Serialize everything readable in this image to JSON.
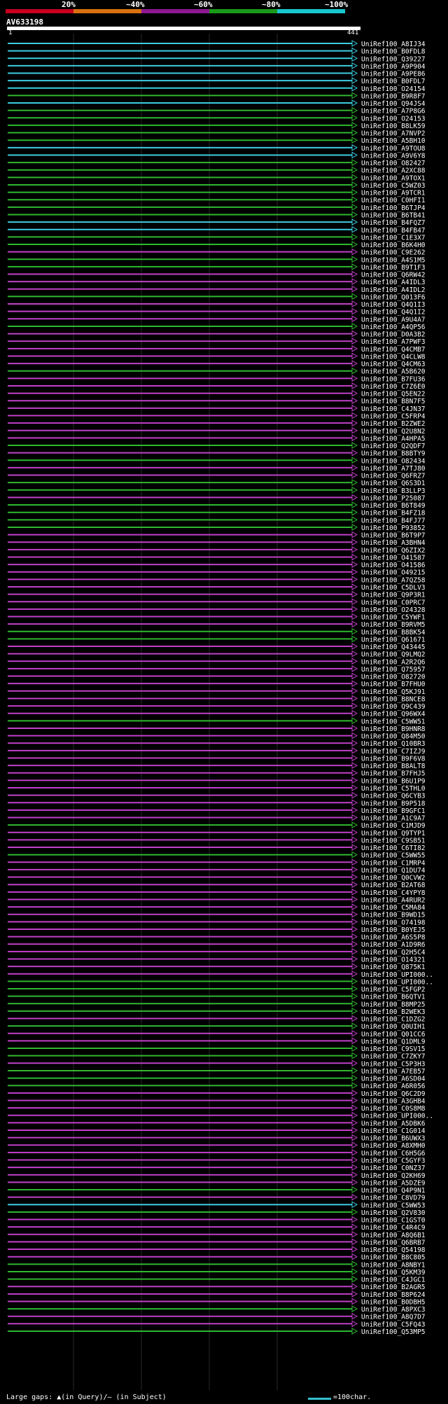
{
  "header": {
    "percent_labels": [
      "20%",
      "~40%",
      "~60%",
      "~80%",
      "~100%"
    ],
    "band_colors": [
      "#c8001e",
      "#d87010",
      "#8c1890",
      "#1a9a1a",
      "#18c8d0"
    ],
    "query_id": "AV633198",
    "query_start": "1",
    "query_end": "441"
  },
  "colors": {
    "background": "#000000",
    "cyan": "#3ccde0",
    "green": "#2fb82f",
    "magenta": "#c040c8",
    "gap_marker": "#ffff80",
    "gridline": "#2a2a2a",
    "label": "#ffffff"
  },
  "hits": [
    {
      "label": "UniRef100_A8IJ34",
      "color": "cyan"
    },
    {
      "label": "UniRef100_B0FDL8",
      "color": "cyan"
    },
    {
      "label": "UniRef100_Q39227",
      "color": "cyan"
    },
    {
      "label": "UniRef100_A9P904",
      "color": "cyan"
    },
    {
      "label": "UniRef100_A9PE86",
      "color": "cyan"
    },
    {
      "label": "UniRef100_B0FDL7",
      "color": "cyan"
    },
    {
      "label": "UniRef100_O24154",
      "color": "cyan"
    },
    {
      "label": "UniRef100_B9R8F7",
      "color": "green"
    },
    {
      "label": "UniRef100_Q94JS4",
      "color": "cyan"
    },
    {
      "label": "UniRef100_A7P8G6",
      "color": "green"
    },
    {
      "label": "UniRef100_O24153",
      "color": "green"
    },
    {
      "label": "UniRef100_B8LK59",
      "color": "green"
    },
    {
      "label": "UniRef100_A7NVP2",
      "color": "green"
    },
    {
      "label": "UniRef100_A5BH10",
      "color": "green"
    },
    {
      "label": "UniRef100_A9TOU8",
      "color": "cyan"
    },
    {
      "label": "UniRef100_A9V6Y8",
      "color": "cyan"
    },
    {
      "label": "UniRef100_O82427",
      "color": "green"
    },
    {
      "label": "UniRef100_A2XC88",
      "color": "green"
    },
    {
      "label": "UniRef100_A9TOX1",
      "color": "green"
    },
    {
      "label": "UniRef100_C5WZ03",
      "color": "green"
    },
    {
      "label": "UniRef100_A9TCR1",
      "color": "green"
    },
    {
      "label": "UniRef100_C0HFI1",
      "color": "green"
    },
    {
      "label": "UniRef100_B6TJP4",
      "color": "green"
    },
    {
      "label": "UniRef100_B6TB41",
      "color": "green"
    },
    {
      "label": "UniRef100_B4FQZ7",
      "color": "cyan"
    },
    {
      "label": "UniRef100_B4FB47",
      "color": "cyan"
    },
    {
      "label": "UniRef100_C1E3X7",
      "color": "green"
    },
    {
      "label": "UniRef100_B6K4H0",
      "color": "green"
    },
    {
      "label": "UniRef100_C9E262",
      "color": "magenta"
    },
    {
      "label": "UniRef100_A4S1M5",
      "color": "green"
    },
    {
      "label": "UniRef100_B9T1F3",
      "color": "green"
    },
    {
      "label": "UniRef100_Q6RW42",
      "color": "magenta"
    },
    {
      "label": "UniRef100_A4IDL3",
      "color": "magenta"
    },
    {
      "label": "UniRef100_A4IDL2",
      "color": "magenta"
    },
    {
      "label": "UniRef100_Q013F6",
      "color": "green"
    },
    {
      "label": "UniRef100_Q4Q1I3",
      "color": "magenta"
    },
    {
      "label": "UniRef100_Q4Q1I2",
      "color": "magenta"
    },
    {
      "label": "UniRef100_A9U4A7",
      "color": "magenta"
    },
    {
      "label": "UniRef100_A4QP56",
      "color": "green"
    },
    {
      "label": "UniRef100_D0A3B2",
      "color": "magenta"
    },
    {
      "label": "UniRef100_A7PWF3",
      "color": "magenta"
    },
    {
      "label": "UniRef100_Q4CMB7",
      "color": "magenta"
    },
    {
      "label": "UniRef100_Q4CLW8",
      "color": "magenta"
    },
    {
      "label": "UniRef100_Q4CM63",
      "color": "magenta"
    },
    {
      "label": "UniRef100_A5B620",
      "color": "green"
    },
    {
      "label": "UniRef100_B7FU36",
      "color": "magenta"
    },
    {
      "label": "UniRef100_C7Z6E0",
      "color": "magenta"
    },
    {
      "label": "UniRef100_Q5EN22",
      "color": "magenta"
    },
    {
      "label": "UniRef100_B8N7F5",
      "color": "magenta"
    },
    {
      "label": "UniRef100_C4JN37",
      "color": "magenta"
    },
    {
      "label": "UniRef100_C5FRP4",
      "color": "magenta"
    },
    {
      "label": "UniRef100_B2ZWE2",
      "color": "magenta"
    },
    {
      "label": "UniRef100_Q2U8N2",
      "color": "magenta"
    },
    {
      "label": "UniRef100_A4HPA5",
      "color": "magenta"
    },
    {
      "label": "UniRef100_Q2QDF7",
      "color": "green"
    },
    {
      "label": "UniRef100_B8BTY9",
      "color": "magenta"
    },
    {
      "label": "UniRef100_O82434",
      "color": "green"
    },
    {
      "label": "UniRef100_A7TJ80",
      "color": "magenta"
    },
    {
      "label": "UniRef100_Q6FRZ7",
      "color": "magenta"
    },
    {
      "label": "UniRef100_Q6S3D1",
      "color": "green"
    },
    {
      "label": "UniRef100_B3LLP3",
      "color": "green"
    },
    {
      "label": "UniRef100_P25087",
      "color": "magenta"
    },
    {
      "label": "UniRef100_B6T849",
      "color": "green"
    },
    {
      "label": "UniRef100_B4FZ18",
      "color": "green"
    },
    {
      "label": "UniRef100_B4FJ77",
      "color": "green"
    },
    {
      "label": "UniRef100_P93852",
      "color": "green"
    },
    {
      "label": "UniRef100_B6T9P7",
      "color": "magenta"
    },
    {
      "label": "UniRef100_A3BHN4",
      "color": "magenta"
    },
    {
      "label": "UniRef100_Q6ZIX2",
      "color": "magenta"
    },
    {
      "label": "UniRef100_O41587",
      "color": "magenta"
    },
    {
      "label": "UniRef100_O41586",
      "color": "magenta"
    },
    {
      "label": "UniRef100_O49215",
      "color": "magenta"
    },
    {
      "label": "UniRef100_A7QZ58",
      "color": "magenta"
    },
    {
      "label": "UniRef100_C5DLV3",
      "color": "magenta"
    },
    {
      "label": "UniRef100_Q9P3R1",
      "color": "magenta"
    },
    {
      "label": "UniRef100_C0PRC7",
      "color": "magenta"
    },
    {
      "label": "UniRef100_O24328",
      "color": "magenta"
    },
    {
      "label": "UniRef100_C5YWF1",
      "color": "magenta"
    },
    {
      "label": "UniRef100_B9RVM5",
      "color": "magenta"
    },
    {
      "label": "UniRef100_B8BK54",
      "color": "green"
    },
    {
      "label": "UniRef100_Q61671",
      "color": "green"
    },
    {
      "label": "UniRef100_Q43445",
      "color": "magenta"
    },
    {
      "label": "UniRef100_Q9LMQ2",
      "color": "magenta"
    },
    {
      "label": "UniRef100_A2R2Q6",
      "color": "magenta"
    },
    {
      "label": "UniRef100_Q75957",
      "color": "magenta"
    },
    {
      "label": "UniRef100_O82720",
      "color": "magenta"
    },
    {
      "label": "UniRef100_B7FHU0",
      "color": "magenta"
    },
    {
      "label": "UniRef100_Q5KJ91",
      "color": "magenta"
    },
    {
      "label": "UniRef100_B8NCE8",
      "color": "magenta"
    },
    {
      "label": "UniRef100_Q9C439",
      "color": "magenta"
    },
    {
      "label": "UniRef100_Q96WX4",
      "color": "magenta"
    },
    {
      "label": "UniRef100_C5WW51",
      "color": "green"
    },
    {
      "label": "UniRef100_B9HNR8",
      "color": "magenta"
    },
    {
      "label": "UniRef100_Q84M50",
      "color": "magenta"
    },
    {
      "label": "UniRef100_Q10BR3",
      "color": "magenta"
    },
    {
      "label": "UniRef100_C7IZJ9",
      "color": "magenta"
    },
    {
      "label": "UniRef100_B9F6V8",
      "color": "magenta"
    },
    {
      "label": "UniRef100_B8ALT8",
      "color": "magenta"
    },
    {
      "label": "UniRef100_B7FHJ5",
      "color": "magenta"
    },
    {
      "label": "UniRef100_B6U1P9",
      "color": "magenta"
    },
    {
      "label": "UniRef100_C5THL0",
      "color": "magenta"
    },
    {
      "label": "UniRef100_Q6CYB3",
      "color": "magenta"
    },
    {
      "label": "UniRef100_B9P518",
      "color": "magenta"
    },
    {
      "label": "UniRef100_B9GFC1",
      "color": "magenta"
    },
    {
      "label": "UniRef100_A1C9A7",
      "color": "magenta"
    },
    {
      "label": "UniRef100_C1MJD9",
      "color": "green"
    },
    {
      "label": "UniRef100_Q9TYP1",
      "color": "magenta"
    },
    {
      "label": "UniRef100_C9SB51",
      "color": "magenta"
    },
    {
      "label": "UniRef100_C6TI82",
      "color": "magenta"
    },
    {
      "label": "UniRef100_C5WW55",
      "color": "green"
    },
    {
      "label": "UniRef100_C1MRP4",
      "color": "magenta"
    },
    {
      "label": "UniRef100_Q1DU74",
      "color": "magenta"
    },
    {
      "label": "UniRef100_Q0CVW2",
      "color": "magenta"
    },
    {
      "label": "UniRef100_B2AT68",
      "color": "magenta"
    },
    {
      "label": "UniRef100_C4YPY8",
      "color": "magenta"
    },
    {
      "label": "UniRef100_A4RUR2",
      "color": "magenta"
    },
    {
      "label": "UniRef100_C5MA84",
      "color": "magenta"
    },
    {
      "label": "UniRef100_B9WD15",
      "color": "magenta"
    },
    {
      "label": "UniRef100_O74198",
      "color": "magenta"
    },
    {
      "label": "UniRef100_B0YEJ5",
      "color": "magenta"
    },
    {
      "label": "UniRef100_A6S5P8",
      "color": "magenta"
    },
    {
      "label": "UniRef100_A1D9R6",
      "color": "magenta"
    },
    {
      "label": "UniRef100_Q2H5C4",
      "color": "magenta"
    },
    {
      "label": "UniRef100_O14321",
      "color": "magenta"
    },
    {
      "label": "UniRef100_Q875K1",
      "color": "magenta"
    },
    {
      "label": "UniRef100_UPI000..",
      "color": "magenta"
    },
    {
      "label": "UniRef100_UPI000..",
      "color": "green"
    },
    {
      "label": "UniRef100_C5FGP2",
      "color": "green"
    },
    {
      "label": "UniRef100_B6QTV1",
      "color": "green"
    },
    {
      "label": "UniRef100_B8MP25",
      "color": "green"
    },
    {
      "label": "UniRef100_B2WEK3",
      "color": "green"
    },
    {
      "label": "UniRef100_C1DZG2",
      "color": "magenta"
    },
    {
      "label": "UniRef100_Q0UIH1",
      "color": "green"
    },
    {
      "label": "UniRef100_Q01CC6",
      "color": "magenta"
    },
    {
      "label": "UniRef100_Q1DML9",
      "color": "magenta"
    },
    {
      "label": "UniRef100_C9SV15",
      "color": "green"
    },
    {
      "label": "UniRef100_C7ZKY7",
      "color": "green"
    },
    {
      "label": "UniRef100_C5P3H3",
      "color": "magenta"
    },
    {
      "label": "UniRef100_A7EB57",
      "color": "green"
    },
    {
      "label": "UniRef100_A6SD04",
      "color": "green"
    },
    {
      "label": "UniRef100_A6R056",
      "color": "green"
    },
    {
      "label": "UniRef100_Q6C2D9",
      "color": "magenta"
    },
    {
      "label": "UniRef100_A3GHB4",
      "color": "magenta"
    },
    {
      "label": "UniRef100_C0S8M8",
      "color": "magenta"
    },
    {
      "label": "UniRef100_UPI000..",
      "color": "magenta"
    },
    {
      "label": "UniRef100_A5DBK6",
      "color": "magenta"
    },
    {
      "label": "UniRef100_C1G014",
      "color": "magenta"
    },
    {
      "label": "UniRef100_B6UWX3",
      "color": "magenta"
    },
    {
      "label": "UniRef100_A8XMH0",
      "color": "magenta"
    },
    {
      "label": "UniRef100_C6H5G6",
      "color": "magenta"
    },
    {
      "label": "UniRef100_C5GYF3",
      "color": "magenta"
    },
    {
      "label": "UniRef100_C0NZ37",
      "color": "magenta"
    },
    {
      "label": "UniRef100_Q2KH69",
      "color": "magenta"
    },
    {
      "label": "UniRef100_A5DZE9",
      "color": "magenta"
    },
    {
      "label": "UniRef100_Q4P9N1",
      "color": "green"
    },
    {
      "label": "UniRef100_C8VD79",
      "color": "magenta"
    },
    {
      "label": "UniRef100_C5WW53",
      "color": "cyan"
    },
    {
      "label": "UniRef100_Q2V830",
      "color": "green"
    },
    {
      "label": "UniRef100_C1GST0",
      "color": "magenta"
    },
    {
      "label": "UniRef100_C4R4C9",
      "color": "magenta"
    },
    {
      "label": "UniRef100_A8Q6B1",
      "color": "magenta"
    },
    {
      "label": "UniRef100_Q6BRB7",
      "color": "magenta"
    },
    {
      "label": "UniRef100_Q54198",
      "color": "magenta"
    },
    {
      "label": "UniRef100_B8C805",
      "color": "magenta"
    },
    {
      "label": "UniRef100_A8NBY1",
      "color": "green"
    },
    {
      "label": "UniRef100_Q5KM39",
      "color": "green"
    },
    {
      "label": "UniRef100_C4JGC1",
      "color": "green"
    },
    {
      "label": "UniRef100_B2AGR5",
      "color": "magenta"
    },
    {
      "label": "UniRef100_B8P624",
      "color": "magenta"
    },
    {
      "label": "UniRef100_B0DBH5",
      "color": "magenta"
    },
    {
      "label": "UniRef100_A8PXC3",
      "color": "green"
    },
    {
      "label": "UniRef100_A8Q7D7",
      "color": "magenta"
    },
    {
      "label": "UniRef100_C5FQ43",
      "color": "magenta"
    },
    {
      "label": "UniRef100_Q53MP5",
      "color": "green"
    }
  ],
  "footer": {
    "large_gaps_note": "Large gaps: ▲(in Query)/– (in Subject)",
    "legend_label": "=100char."
  }
}
